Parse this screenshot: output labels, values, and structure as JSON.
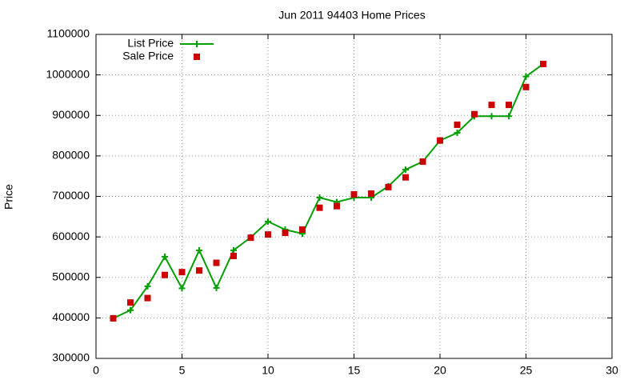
{
  "chart_data": {
    "type": "line",
    "title": "Jun 2011 94403 Home Prices",
    "y_label": "Price",
    "x": [
      1,
      2,
      3,
      4,
      5,
      6,
      7,
      8,
      9,
      10,
      11,
      12,
      13,
      14,
      15,
      16,
      17,
      18,
      19,
      20,
      21,
      22,
      23,
      24,
      25,
      26
    ],
    "series": [
      {
        "name": "List Price",
        "color": "#00a000",
        "style": "linespoints",
        "values": [
          399000,
          419000,
          478000,
          551000,
          473000,
          567000,
          474000,
          567000,
          599000,
          638000,
          618000,
          608000,
          697000,
          686000,
          697000,
          697000,
          725000,
          766000,
          786000,
          838000,
          857000,
          898000,
          898000,
          898000,
          996000,
          1027000
        ]
      },
      {
        "name": "Sale Price",
        "color": "#cc0000",
        "style": "points",
        "values": [
          399000,
          438000,
          449000,
          506000,
          513000,
          517000,
          536000,
          553000,
          598000,
          606000,
          610000,
          618000,
          672000,
          676000,
          705000,
          707000,
          723000,
          747000,
          786000,
          838000,
          877000,
          903000,
          926000,
          926000,
          970000,
          1027000
        ]
      }
    ],
    "xlim": [
      0,
      30
    ],
    "xticks": [
      0,
      5,
      10,
      15,
      20,
      25,
      30
    ],
    "ylim": [
      300000,
      1100000
    ],
    "yticks": [
      300000,
      400000,
      500000,
      600000,
      700000,
      800000,
      900000,
      1000000,
      1100000
    ],
    "grid": true,
    "legend": "top-left"
  }
}
